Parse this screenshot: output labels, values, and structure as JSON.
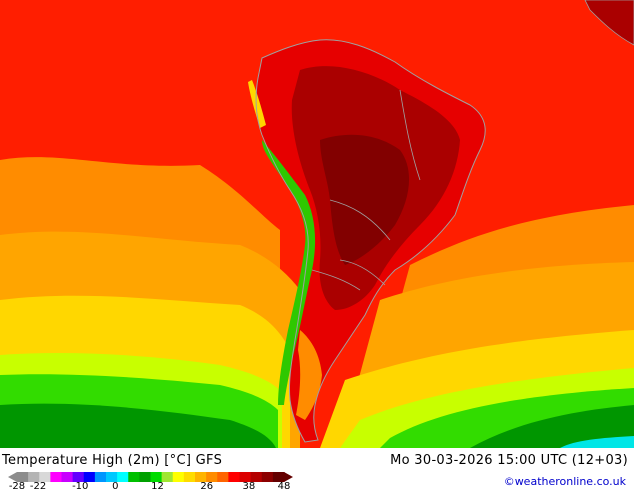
{
  "title": "Temperature High (2m) [°C] GFS",
  "valid_time": "Mo 30-03-2026 15:00 UTC (12+03)",
  "credit": "©weatheronline.co.uk",
  "legend": {
    "ticks": [
      "-28",
      "-22",
      "-10",
      "0",
      "12",
      "26",
      "38",
      "48"
    ],
    "tick_values": [
      -28,
      -22,
      -10,
      0,
      12,
      26,
      38,
      48
    ],
    "range": [
      -28,
      48
    ],
    "colors": [
      "#8c8c8c",
      "#b4b4b4",
      "#d8d8d8",
      "#ff00ff",
      "#c800ff",
      "#6400ff",
      "#0000ff",
      "#0096ff",
      "#00c8ff",
      "#00ffff",
      "#00c000",
      "#00a000",
      "#00dc00",
      "#a0e632",
      "#ffff00",
      "#ffdc00",
      "#ffb400",
      "#ff8c00",
      "#ff6400",
      "#ff0000",
      "#dc0000",
      "#b40000",
      "#8c0000",
      "#640000"
    ]
  },
  "map": {
    "region": "South America and surrounding oceans",
    "colors": {
      "ocean_north": "#ff1e00",
      "ocean_orange": "#ff8c00",
      "ocean_amber": "#ffa500",
      "ocean_yellow": "#ffd700",
      "ocean_lime": "#c8ff00",
      "ocean_green": "#32dc00",
      "ocean_dark_green": "#009600",
      "land_red": "#e60000",
      "land_dark_red": "#aa0000",
      "land_darkest": "#820000",
      "andes_green": "#2ec800",
      "border": "#a0a0a0"
    }
  }
}
